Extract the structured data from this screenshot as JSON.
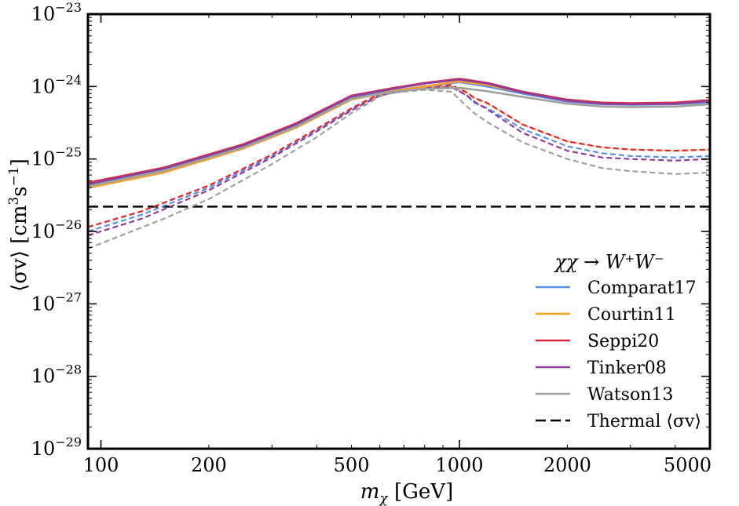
{
  "chart_data": {
    "type": "line",
    "xscale": "log",
    "yscale": "log",
    "xlim": [
      92,
      5000
    ],
    "ylim": [
      1e-29,
      1e-23
    ],
    "xlabel": "m",
    "xlabel_sub": "χ",
    "xlabel_unit": "[GeV]",
    "ylabel_main": "⟨σv⟩ [cm",
    "ylabel_sup1": "3",
    "ylabel_mid": "s",
    "ylabel_sup2": "−1",
    "ylabel_end": "]",
    "xticks": [
      {
        "value": 100,
        "label": "100"
      },
      {
        "value": 200,
        "label": "200"
      },
      {
        "value": 500,
        "label": "500"
      },
      {
        "value": 1000,
        "label": "1000"
      },
      {
        "value": 2000,
        "label": "2000"
      },
      {
        "value": 5000,
        "label": "5000"
      }
    ],
    "yticks": [
      {
        "exp": -29,
        "base": "10",
        "sup": "−29"
      },
      {
        "exp": -28,
        "base": "10",
        "sup": "−28"
      },
      {
        "exp": -27,
        "base": "10",
        "sup": "−27"
      },
      {
        "exp": -26,
        "base": "10",
        "sup": "−26"
      },
      {
        "exp": -25,
        "base": "10",
        "sup": "−25"
      },
      {
        "exp": -24,
        "base": "10",
        "sup": "−24"
      },
      {
        "exp": -23,
        "base": "10",
        "sup": "−23"
      }
    ],
    "legend_title": "χχ → W⁺W⁻",
    "legend_position": "lower-right",
    "thermal": {
      "name": "Thermal ⟨σv⟩",
      "value": 2.2e-26,
      "color": "#000000"
    },
    "series": [
      {
        "name": "Comparat17",
        "color": "#5b8fe8",
        "solid": {
          "x": [
            92,
            150,
            250,
            350,
            500,
            650,
            800,
            1000,
            1200,
            1500,
            2000,
            2500,
            3000,
            4000,
            5000
          ],
          "y": [
            4.3e-26,
            7.2e-26,
            1.5e-25,
            2.9e-25,
            7e-25,
            8.8e-25,
            1e-24,
            1.15e-24,
            1e-24,
            8e-25,
            6.2e-25,
            5.7e-25,
            5.6e-25,
            5.7e-25,
            6.1e-25
          ]
        },
        "dashed": {
          "x": [
            92,
            130,
            200,
            300,
            400,
            500,
            600,
            650,
            800,
            950,
            1050,
            1100,
            1200,
            1500,
            2000,
            2500,
            3000,
            4000,
            5000
          ],
          "y": [
            1e-26,
            1.7e-26,
            4e-26,
            1.1e-25,
            2.5e-25,
            4.8e-25,
            7.8e-25,
            8.4e-25,
            9.6e-25,
            9.8e-25,
            7.5e-25,
            6e-25,
            5e-25,
            2.6e-25,
            1.5e-25,
            1.2e-25,
            1.1e-25,
            1.05e-25,
            1.1e-25
          ]
        }
      },
      {
        "name": "Courtin11",
        "color": "#f5a030",
        "solid": {
          "x": [
            92,
            150,
            250,
            350,
            500,
            650,
            800,
            1000,
            1200,
            1500,
            2000,
            2500,
            3000,
            4000,
            5000
          ],
          "y": [
            4e-26,
            6.5e-26,
            1.4e-25,
            2.7e-25,
            6.6e-25,
            8.7e-25,
            1e-24,
            1.18e-24,
            1.05e-24,
            8.3e-25,
            6.4e-25,
            5.8e-25,
            5.7e-25,
            5.8e-25,
            6.3e-25
          ]
        },
        "dashed": {
          "x": [
            92,
            130,
            200,
            300,
            400,
            500,
            600,
            650,
            800,
            950,
            1050,
            1100,
            1200,
            1500,
            2000,
            2500,
            3000,
            4000,
            5000
          ],
          "y": [
            1.15e-26,
            1.9e-26,
            4.3e-26,
            1.15e-25,
            2.6e-25,
            5e-25,
            7.6e-25,
            8.1e-25,
            9.6e-25,
            1e-24,
            8.2e-25,
            6.9e-25,
            5.8e-25,
            3e-25,
            1.75e-25,
            1.45e-25,
            1.35e-25,
            1.3e-25,
            1.35e-25
          ]
        }
      },
      {
        "name": "Seppi20",
        "color": "#dc2a3c",
        "solid": {
          "x": [
            92,
            150,
            250,
            350,
            500,
            650,
            800,
            1000,
            1200,
            1500,
            2000,
            2500,
            3000,
            4000,
            5000
          ],
          "y": [
            4.7e-26,
            7.6e-26,
            1.6e-25,
            3.1e-25,
            7.5e-25,
            9.5e-25,
            1.12e-24,
            1.28e-24,
            1.12e-24,
            8.5e-25,
            6.6e-25,
            6e-25,
            5.9e-25,
            6e-25,
            6.5e-25
          ]
        },
        "dashed": {
          "x": [
            92,
            130,
            200,
            300,
            400,
            500,
            600,
            650,
            800,
            950,
            1050,
            1100,
            1200,
            1500,
            2000,
            2500,
            3000,
            4000,
            5000
          ],
          "y": [
            1.15e-26,
            1.9e-26,
            4.3e-26,
            1.15e-25,
            2.6e-25,
            5e-25,
            8e-25,
            8.6e-25,
            1.02e-24,
            1.05e-24,
            8.3e-25,
            7e-25,
            5.9e-25,
            3e-25,
            1.75e-25,
            1.45e-25,
            1.35e-25,
            1.3e-25,
            1.35e-25
          ]
        }
      },
      {
        "name": "Tinker08",
        "color": "#8e3d9c",
        "solid": {
          "x": [
            92,
            150,
            250,
            350,
            500,
            650,
            800,
            1000,
            1200,
            1500,
            2000,
            2500,
            3000,
            4000,
            5000
          ],
          "y": [
            4.5e-26,
            7.4e-26,
            1.55e-25,
            3e-25,
            7.3e-25,
            9.3e-25,
            1.1e-24,
            1.25e-24,
            1.1e-24,
            8.3e-25,
            6.4e-25,
            5.8e-25,
            5.7e-25,
            5.8e-25,
            6.3e-25
          ]
        },
        "dashed": {
          "x": [
            92,
            130,
            200,
            300,
            400,
            500,
            600,
            650,
            800,
            950,
            1050,
            1100,
            1200,
            1500,
            2000,
            2500,
            3000,
            4000,
            5000
          ],
          "y": [
            8.8e-27,
            1.5e-26,
            3.7e-26,
            1.05e-25,
            2.4e-25,
            4.7e-25,
            7.5e-25,
            8.2e-25,
            9.6e-25,
            1e-24,
            7.5e-25,
            6.2e-25,
            4.8e-25,
            2.3e-25,
            1.3e-25,
            1.05e-25,
            1e-25,
            9.5e-26,
            1e-25
          ]
        }
      },
      {
        "name": "Watson13",
        "color": "#a0a0a0",
        "solid": {
          "x": [
            92,
            150,
            250,
            350,
            500,
            650,
            800,
            1000,
            1200,
            1500,
            2000,
            2500,
            3000,
            4000,
            5000
          ],
          "y": [
            4.2e-26,
            6.9e-26,
            1.45e-25,
            2.8e-25,
            6.8e-25,
            8.5e-25,
            9.3e-25,
            9.6e-25,
            8.6e-25,
            7.2e-25,
            5.8e-25,
            5.3e-25,
            5.2e-25,
            5.3e-25,
            5.7e-25
          ]
        },
        "dashed": {
          "x": [
            92,
            150,
            200,
            300,
            400,
            500,
            600,
            650,
            800,
            950,
            1050,
            1100,
            1200,
            1500,
            2000,
            2500,
            3000,
            4000,
            5000
          ],
          "y": [
            5.8e-27,
            1.5e-26,
            2.8e-26,
            8.5e-26,
            2e-25,
            4.3e-25,
            7.3e-25,
            8.2e-25,
            9e-25,
            8.5e-25,
            5.3e-25,
            4.3e-25,
            3.2e-25,
            1.7e-25,
            1e-25,
            7.5e-26,
            6.8e-26,
            6.2e-26,
            6.5e-26
          ]
        }
      }
    ]
  }
}
